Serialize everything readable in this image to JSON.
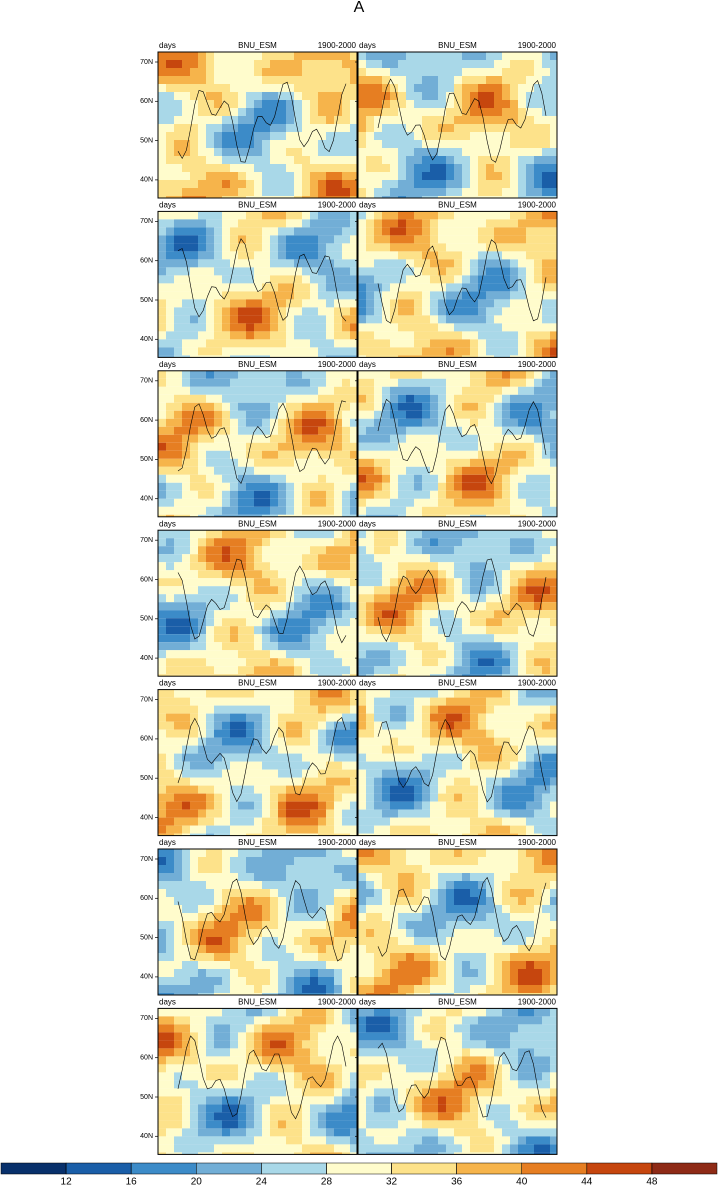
{
  "title": "A",
  "panels": [
    {
      "left": "days",
      "center": "BNU_ESM",
      "right": "1900-2000"
    },
    {
      "left": "days",
      "center": "BNU_ESM",
      "right": "1900-2000"
    },
    {
      "left": "days",
      "center": "BNU_ESM",
      "right": "1900-2000"
    },
    {
      "left": "days",
      "center": "BNU_ESM",
      "right": "1900-2000"
    },
    {
      "left": "days",
      "center": "BNU_ESM",
      "right": "1900-2000"
    },
    {
      "left": "days",
      "center": "BNU_ESM",
      "right": "1900-2000"
    },
    {
      "left": "days",
      "center": "BNU_ESM",
      "right": "1900-2000"
    },
    {
      "left": "days",
      "center": "BNU_ESM",
      "right": "1900-2000"
    },
    {
      "left": "days",
      "center": "BNU_ESM",
      "right": "1900-2000"
    },
    {
      "left": "days",
      "center": "BNU_ESM",
      "right": "1900-2000"
    },
    {
      "left": "days",
      "center": "BNU_ESM",
      "right": "1900-2000"
    },
    {
      "left": "days",
      "center": "BNU_ESM",
      "right": "1900-2000"
    },
    {
      "left": "days",
      "center": "BNU_ESM",
      "right": "1900-2000"
    },
    {
      "left": "days",
      "center": "BNU_ESM",
      "right": "1900-2000"
    }
  ],
  "lat_labels": [
    "70N",
    "60N",
    "50N",
    "40N"
  ],
  "colorbar": {
    "ticks": [
      12,
      16,
      20,
      24,
      28,
      32,
      36,
      40,
      44,
      48
    ],
    "colors": [
      "#08306b",
      "#1a5ea8",
      "#3c8bc8",
      "#72aed6",
      "#a9d8e8",
      "#fffccc",
      "#fde28a",
      "#f6b44b",
      "#e67e22",
      "#c6460e",
      "#8e2a16"
    ]
  }
}
